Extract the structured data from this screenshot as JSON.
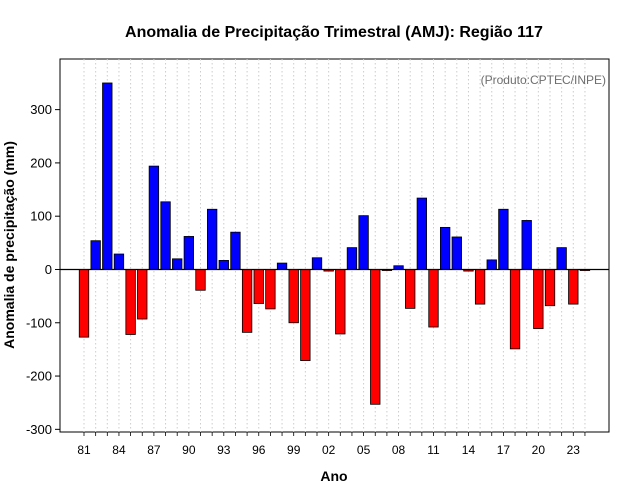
{
  "chart_data": {
    "type": "bar",
    "title": "Anomalia de Precipitação Trimestral (AMJ): Região 117",
    "xlabel": "Ano",
    "ylabel": "Anomalia de precipitação (mm)",
    "credit": "(Produto:CPTEC/INPE)",
    "ylim": [
      -305,
      395
    ],
    "yticks": [
      -300,
      -200,
      -100,
      0,
      100,
      200,
      300
    ],
    "grid": "vertical dotted",
    "x": [
      1981,
      1982,
      1983,
      1984,
      1985,
      1986,
      1987,
      1988,
      1989,
      1990,
      1991,
      1992,
      1993,
      1994,
      1995,
      1996,
      1997,
      1998,
      1999,
      2000,
      2001,
      2002,
      2003,
      2004,
      2005,
      2006,
      2007,
      2008,
      2009,
      2010,
      2011,
      2012,
      2013,
      2014,
      2015,
      2016,
      2017,
      2018,
      2019,
      2020,
      2021,
      2022,
      2023,
      2024
    ],
    "values": [
      -127,
      54,
      350,
      29,
      -122,
      -93,
      194,
      127,
      20,
      62,
      -39,
      113,
      17,
      70,
      -118,
      -64,
      -74,
      12,
      -100,
      -171,
      22,
      -3,
      -121,
      41,
      101,
      -253,
      -2,
      7,
      -73,
      134,
      -108,
      79,
      61,
      -3,
      -65,
      18,
      113,
      -149,
      92,
      -111,
      -68,
      41,
      -65,
      -2
    ],
    "xtick_labels": [
      "81",
      "84",
      "87",
      "90",
      "93",
      "96",
      "99",
      "02",
      "05",
      "08",
      "11",
      "14",
      "17",
      "20",
      "23"
    ],
    "colors": {
      "positive": "#0000ff",
      "negative": "#ff0000"
    }
  }
}
